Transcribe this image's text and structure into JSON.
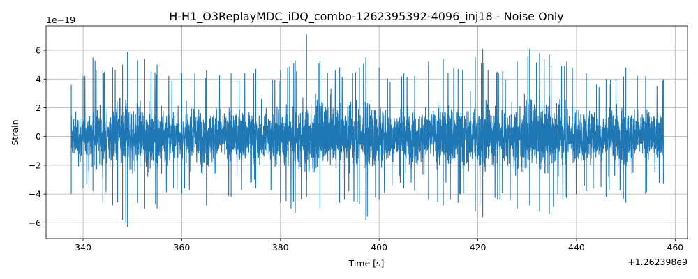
{
  "chart_data": {
    "type": "line",
    "title": "H-H1_O3ReplayMDC_iDQ_combo-1262395392-4096_inj18 - Noise Only",
    "xlabel": "Time [s]",
    "ylabel": "Strain",
    "x_offset_label": "+1.262398e9",
    "y_scale_label": "1e−19",
    "xlim": [
      332.5,
      462.5
    ],
    "ylim": [
      -7.1,
      7.7
    ],
    "x_ticks": [
      340,
      360,
      380,
      400,
      420,
      440,
      460
    ],
    "x_tick_labels": [
      "340",
      "360",
      "380",
      "400",
      "420",
      "440",
      "460"
    ],
    "y_ticks": [
      -6,
      -4,
      -2,
      0,
      2,
      4,
      6
    ],
    "y_tick_labels": [
      "−6",
      "−4",
      "−2",
      "0",
      "2",
      "4",
      "6"
    ],
    "grid": true,
    "series_color": "#1f77b4",
    "series": [
      {
        "x_start": 337.6,
        "x_end": 457.6,
        "y_range": [
          -6.3,
          7.1
        ],
        "envelope": [
          {
            "x": 337.6,
            "ymax": 3.6,
            "ymin": -4.0
          },
          {
            "x": 340.0,
            "ymax": 4.2,
            "ymin": -3.6
          },
          {
            "x": 342.0,
            "ymax": 5.5,
            "ymin": -3.8
          },
          {
            "x": 344.0,
            "ymax": 4.6,
            "ymin": -4.6
          },
          {
            "x": 346.0,
            "ymax": 4.8,
            "ymin": -4.8
          },
          {
            "x": 348.0,
            "ymax": 5.0,
            "ymin": -5.8
          },
          {
            "x": 349.0,
            "ymax": 5.9,
            "ymin": -6.3
          },
          {
            "x": 351.0,
            "ymax": 5.3,
            "ymin": -4.6
          },
          {
            "x": 352.5,
            "ymax": 5.4,
            "ymin": -5.0
          },
          {
            "x": 355.0,
            "ymax": 5.0,
            "ymin": -5.0
          },
          {
            "x": 360.0,
            "ymax": 4.4,
            "ymin": -4.0
          },
          {
            "x": 365.0,
            "ymax": 4.6,
            "ymin": -4.8
          },
          {
            "x": 370.0,
            "ymax": 4.4,
            "ymin": -4.2
          },
          {
            "x": 375.0,
            "ymax": 4.7,
            "ymin": -3.6
          },
          {
            "x": 380.0,
            "ymax": 4.6,
            "ymin": -4.6
          },
          {
            "x": 383.0,
            "ymax": 5.3,
            "ymin": -5.3
          },
          {
            "x": 385.3,
            "ymax": 7.1,
            "ymin": -4.2
          },
          {
            "x": 388.0,
            "ymax": 5.3,
            "ymin": -5.0
          },
          {
            "x": 392.0,
            "ymax": 4.8,
            "ymin": -4.6
          },
          {
            "x": 396.0,
            "ymax": 4.8,
            "ymin": -4.7
          },
          {
            "x": 397.3,
            "ymax": 5.5,
            "ymin": -5.8
          },
          {
            "x": 400.0,
            "ymax": 4.8,
            "ymin": -4.4
          },
          {
            "x": 405.0,
            "ymax": 4.4,
            "ymin": -3.6
          },
          {
            "x": 410.0,
            "ymax": 5.2,
            "ymin": -4.4
          },
          {
            "x": 413.0,
            "ymax": 5.4,
            "ymin": -4.8
          },
          {
            "x": 416.0,
            "ymax": 4.7,
            "ymin": -4.6
          },
          {
            "x": 419.5,
            "ymax": 5.5,
            "ymin": -5.2
          },
          {
            "x": 421.0,
            "ymax": 6.1,
            "ymin": -5.6
          },
          {
            "x": 424.0,
            "ymax": 4.5,
            "ymin": -4.4
          },
          {
            "x": 428.0,
            "ymax": 5.2,
            "ymin": -5.0
          },
          {
            "x": 430.5,
            "ymax": 6.1,
            "ymin": -4.8
          },
          {
            "x": 432.5,
            "ymax": 5.8,
            "ymin": -5.2
          },
          {
            "x": 434.5,
            "ymax": 5.7,
            "ymin": -5.4
          },
          {
            "x": 438.0,
            "ymax": 5.2,
            "ymin": -4.3
          },
          {
            "x": 442.0,
            "ymax": 4.4,
            "ymin": -3.8
          },
          {
            "x": 446.0,
            "ymax": 4.0,
            "ymin": -4.2
          },
          {
            "x": 450.0,
            "ymax": 4.8,
            "ymin": -4.6
          },
          {
            "x": 454.0,
            "ymax": 4.2,
            "ymin": -4.0
          },
          {
            "x": 457.6,
            "ymax": 4.0,
            "ymin": -3.3
          }
        ]
      }
    ]
  }
}
